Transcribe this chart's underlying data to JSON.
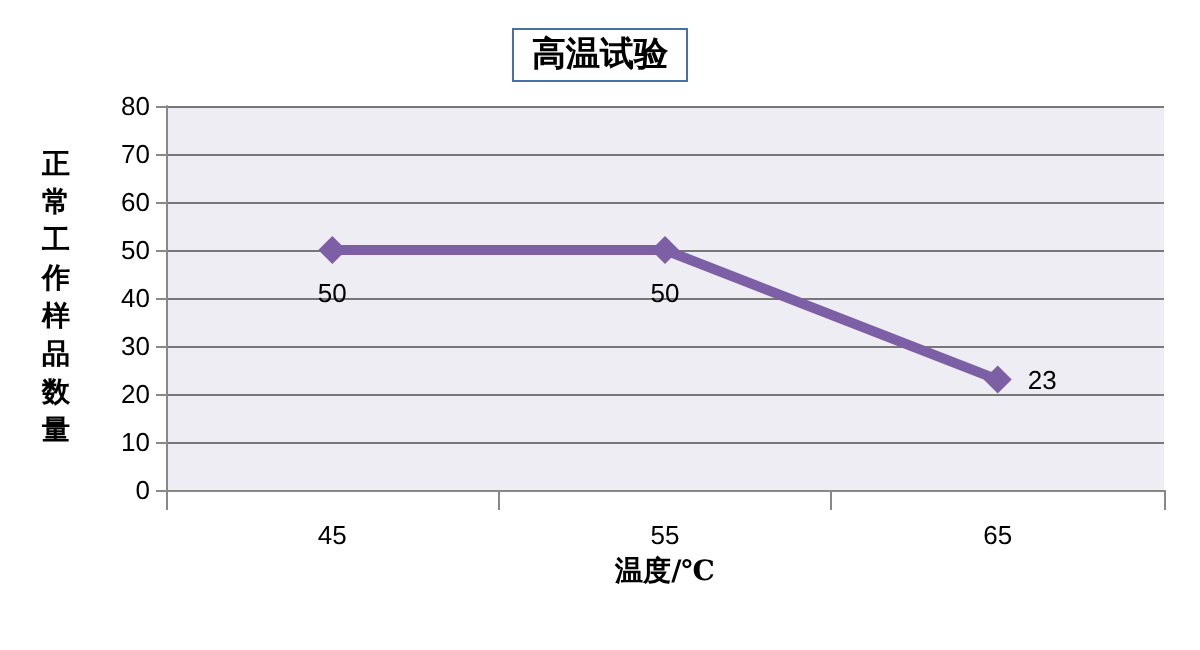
{
  "chart_data": {
    "type": "line",
    "title": "高温试验",
    "xlabel": "温度/℃",
    "ylabel": "正常工作样品数量",
    "categories": [
      "45",
      "55",
      "65"
    ],
    "series": [
      {
        "color": "#7d5fa5",
        "values": [
          50,
          50,
          23
        ]
      }
    ],
    "ylim": [
      0,
      80
    ],
    "yticks": [
      0,
      10,
      20,
      30,
      40,
      50,
      60,
      70,
      80
    ],
    "grid": "y",
    "marker": "diamond",
    "line_style": "solid",
    "data_labels": true
  }
}
